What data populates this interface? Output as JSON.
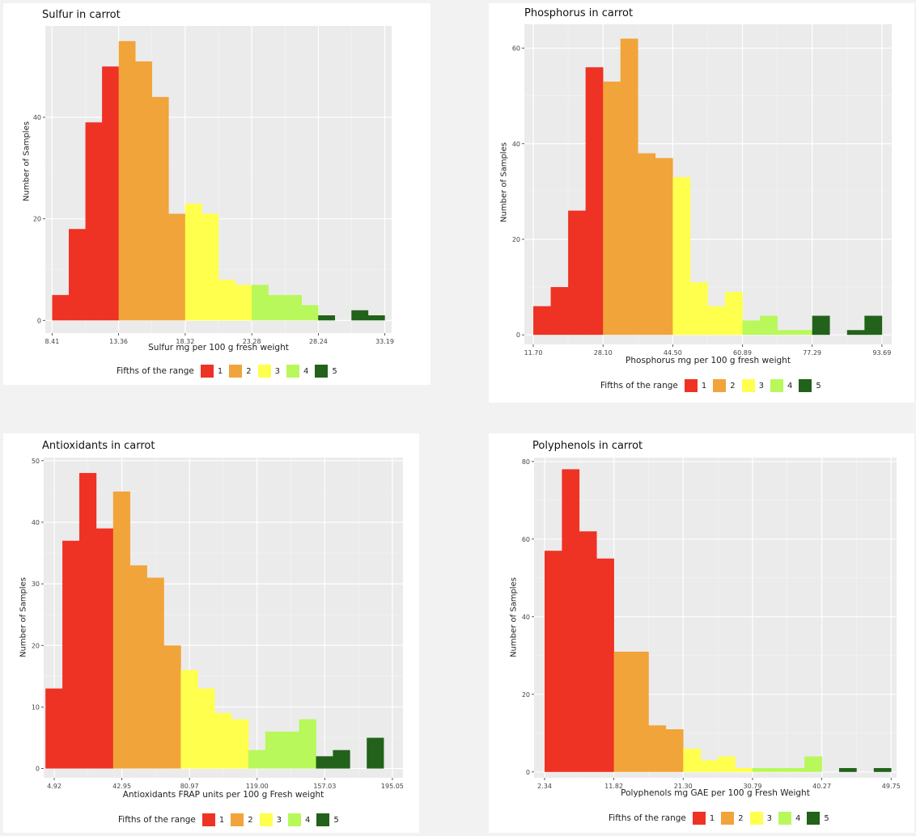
{
  "colors": {
    "fifth1": "#ee3224",
    "fifth2": "#f1a43a",
    "fifth3": "#ffff4d",
    "fifth4": "#b8f85a",
    "fifth5": "#22621a",
    "panel_bg": "#ebebeb"
  },
  "legend": {
    "title": "Fifths of the range",
    "labels": [
      "1",
      "2",
      "3",
      "4",
      "5"
    ]
  },
  "chart_data": [
    {
      "type": "bar",
      "title": "Sulfur in carrot",
      "xlabel": "Sulfur mg per 100 g fresh weight",
      "ylabel": "Number of Samples",
      "xlim": [
        7.9,
        33.7
      ],
      "ylim": [
        -2.5,
        58
      ],
      "xticks": [
        "8.41",
        "13.36",
        "18.32",
        "23.28",
        "28.24",
        "33.19"
      ],
      "yticks": [
        "0",
        "20",
        "40"
      ],
      "bin_start": 8.41,
      "bin_width": 1.2385,
      "values": [
        5,
        18,
        39,
        50,
        55,
        51,
        44,
        21,
        23,
        21,
        8,
        7,
        7,
        5,
        5,
        3,
        1,
        0,
        2,
        1
      ],
      "fifths": [
        1,
        1,
        1,
        1,
        2,
        2,
        2,
        2,
        3,
        3,
        3,
        3,
        4,
        4,
        4,
        4,
        5,
        5,
        5,
        5
      ]
    },
    {
      "type": "bar",
      "title": "Phosphorus in carrot",
      "xlabel": "Phosphorus mg per 100 g fresh weight",
      "ylabel": "Number of Samples",
      "xlim": [
        9.6,
        96.0
      ],
      "ylim": [
        -2.0,
        65
      ],
      "xticks": [
        "11.70",
        "28.10",
        "44.50",
        "60.89",
        "77.29",
        "93.69"
      ],
      "yticks": [
        "0",
        "20",
        "40",
        "60"
      ],
      "bin_start": 11.7,
      "bin_width": 4.0995,
      "values": [
        6,
        10,
        26,
        56,
        53,
        62,
        38,
        37,
        33,
        11,
        6,
        9,
        3,
        4,
        1,
        1,
        4,
        0,
        1,
        4
      ],
      "fifths": [
        1,
        1,
        1,
        1,
        2,
        2,
        2,
        2,
        3,
        3,
        3,
        3,
        4,
        4,
        4,
        4,
        5,
        5,
        5,
        5
      ]
    },
    {
      "type": "bar",
      "title": "Antioxidants in carrot",
      "xlabel": "Antioxidants FRAP units per 100 g Fresh weight",
      "ylabel": "Number of Samples",
      "xlim": [
        -1.0,
        201.0
      ],
      "ylim": [
        -1.5,
        50.5
      ],
      "xticks": [
        "4.92",
        "42.95",
        "80.97",
        "119.00",
        "157.03",
        "195.05"
      ],
      "yticks": [
        "0",
        "10",
        "20",
        "30",
        "40",
        "50"
      ],
      "bin_start": 0.0,
      "bin_width": 9.507,
      "values": [
        13,
        37,
        48,
        39,
        45,
        33,
        31,
        20,
        16,
        13,
        9,
        8,
        3,
        6,
        6,
        8,
        2,
        3,
        0,
        5
      ],
      "fifths": [
        1,
        1,
        1,
        1,
        2,
        2,
        2,
        2,
        3,
        3,
        3,
        3,
        4,
        4,
        4,
        4,
        5,
        5,
        5,
        5
      ]
    },
    {
      "type": "bar",
      "title": "Polyphenols in carrot",
      "xlabel": "Polyphenols mg GAE per 100 g Fresh Weight",
      "ylabel": "Number of Samples",
      "xlim": [
        0.9,
        50.5
      ],
      "ylim": [
        -1.5,
        81
      ],
      "xticks": [
        "2.34",
        "11.82",
        "21.30",
        "30.79",
        "40.27",
        "49.75"
      ],
      "yticks": [
        "0",
        "20",
        "40",
        "60",
        "80"
      ],
      "bin_start": 2.34,
      "bin_width": 2.3705,
      "values": [
        57,
        78,
        62,
        55,
        31,
        31,
        12,
        11,
        6,
        3,
        4,
        1,
        1,
        1,
        1,
        4,
        0,
        1,
        0,
        1
      ],
      "fifths": [
        1,
        1,
        1,
        1,
        2,
        2,
        2,
        2,
        3,
        3,
        3,
        3,
        4,
        4,
        4,
        4,
        5,
        5,
        5,
        5
      ]
    }
  ]
}
